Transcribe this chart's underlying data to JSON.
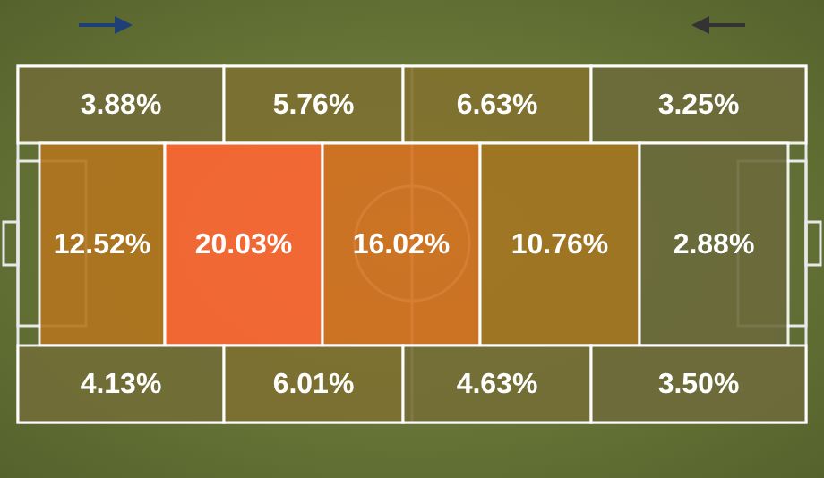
{
  "chart_data": {
    "type": "other",
    "values": [
      3.88,
      5.76,
      6.63,
      3.25,
      12.52,
      20.03,
      16.02,
      10.76,
      2.88,
      4.13,
      6.01,
      4.63,
      3.5
    ],
    "value_labels": [
      "3.88%",
      "5.76%",
      "6.63%",
      "3.25%",
      "12.52%",
      "20.03%",
      "16.02%",
      "10.76%",
      "2.88%",
      "4.13%",
      "6.01%",
      "4.63%",
      "3.50%"
    ]
  }
}
